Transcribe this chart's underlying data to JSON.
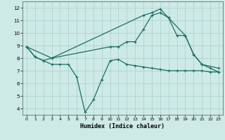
{
  "xlabel": "Humidex (Indice chaleur)",
  "xlim": [
    -0.5,
    23.5
  ],
  "ylim": [
    3.5,
    12.5
  ],
  "yticks": [
    4,
    5,
    6,
    7,
    8,
    9,
    10,
    11,
    12
  ],
  "xticks": [
    0,
    1,
    2,
    3,
    4,
    5,
    6,
    7,
    8,
    9,
    10,
    11,
    12,
    13,
    14,
    15,
    16,
    17,
    18,
    19,
    20,
    21,
    22,
    23
  ],
  "bg_color": "#ceeae6",
  "grid_color": "#a8ceca",
  "line_color": "#1a6e65",
  "line1_x": [
    0,
    1,
    2,
    3,
    4,
    5,
    6,
    7,
    8,
    9,
    10,
    11,
    12,
    13,
    14,
    15,
    16,
    17,
    18,
    19,
    20,
    21,
    22,
    23
  ],
  "line1_y": [
    8.9,
    8.1,
    7.8,
    7.5,
    7.5,
    7.5,
    6.5,
    3.7,
    4.7,
    6.3,
    7.8,
    7.9,
    7.5,
    7.4,
    7.3,
    7.2,
    7.1,
    7.0,
    7.0,
    7.0,
    7.0,
    7.0,
    6.9,
    6.9
  ],
  "line2_x": [
    0,
    1,
    2,
    3,
    10,
    11,
    12,
    13,
    14,
    15,
    16,
    17,
    18,
    19,
    20,
    21,
    22,
    23
  ],
  "line2_y": [
    8.9,
    8.1,
    7.8,
    8.0,
    8.9,
    8.9,
    9.3,
    9.3,
    10.3,
    11.4,
    11.6,
    11.2,
    9.8,
    9.8,
    8.3,
    7.5,
    7.2,
    6.9
  ],
  "line3_x": [
    0,
    3,
    14,
    15,
    16,
    17,
    19,
    20,
    21,
    23
  ],
  "line3_y": [
    8.9,
    8.0,
    11.4,
    11.6,
    11.9,
    11.2,
    9.8,
    8.3,
    7.5,
    7.2
  ]
}
